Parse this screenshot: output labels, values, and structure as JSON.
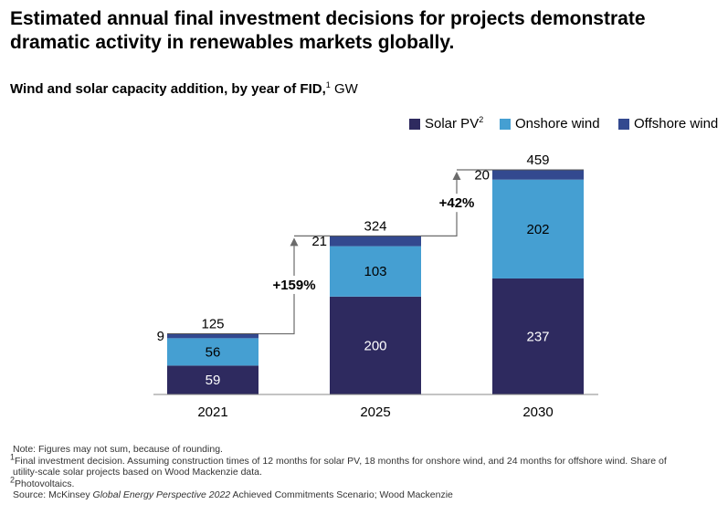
{
  "header": {
    "title": "Estimated annual final investment decisions for projects demonstrate dramatic activity in renewables markets globally.",
    "subtitle_main": "Wind and solar capacity addition, by year of FID,",
    "subtitle_sup": "1",
    "subtitle_unit": "GW"
  },
  "legend": [
    {
      "label": "Solar PV",
      "sup": "2",
      "color": "#2e2a5f"
    },
    {
      "label": "Onshore wind",
      "sup": "",
      "color": "#459fd2"
    },
    {
      "label": "Offshore wind",
      "sup": "",
      "color": "#33498f"
    }
  ],
  "chart_data": {
    "type": "bar",
    "stacked": true,
    "categories": [
      "2021",
      "2025",
      "2030"
    ],
    "series": [
      {
        "name": "Solar PV",
        "values": [
          59,
          200,
          237
        ],
        "color": "#2e2a5f"
      },
      {
        "name": "Onshore wind",
        "values": [
          56,
          103,
          202
        ],
        "color": "#459fd2"
      },
      {
        "name": "Offshore wind",
        "values": [
          9,
          21,
          20
        ],
        "color": "#33498f"
      }
    ],
    "totals": [
      125,
      324,
      459
    ],
    "growth_annotations": [
      {
        "from": "2021",
        "to": "2025",
        "label": "+159%"
      },
      {
        "from": "2025",
        "to": "2030",
        "label": "+42%"
      }
    ],
    "ylim": [
      0,
      480
    ]
  },
  "notes": {
    "note": "Note: Figures may not sum, because of rounding.",
    "fn1_sup": "1",
    "fn1_a": "Final investment decision. Assuming construction times of 12 months for solar PV, 18 months for onshore wind, and 24 months for offshore wind. Share of",
    "fn1_b": "utility-scale solar projects based on Wood Mackenzie data.",
    "fn2_sup": "2",
    "fn2": "Photovoltaics.",
    "source_prefix": "Source: McKinsey ",
    "source_italic": "Global Energy Perspective 2022",
    "source_suffix": " Achieved Commitments Scenario; Wood Mackenzie"
  }
}
